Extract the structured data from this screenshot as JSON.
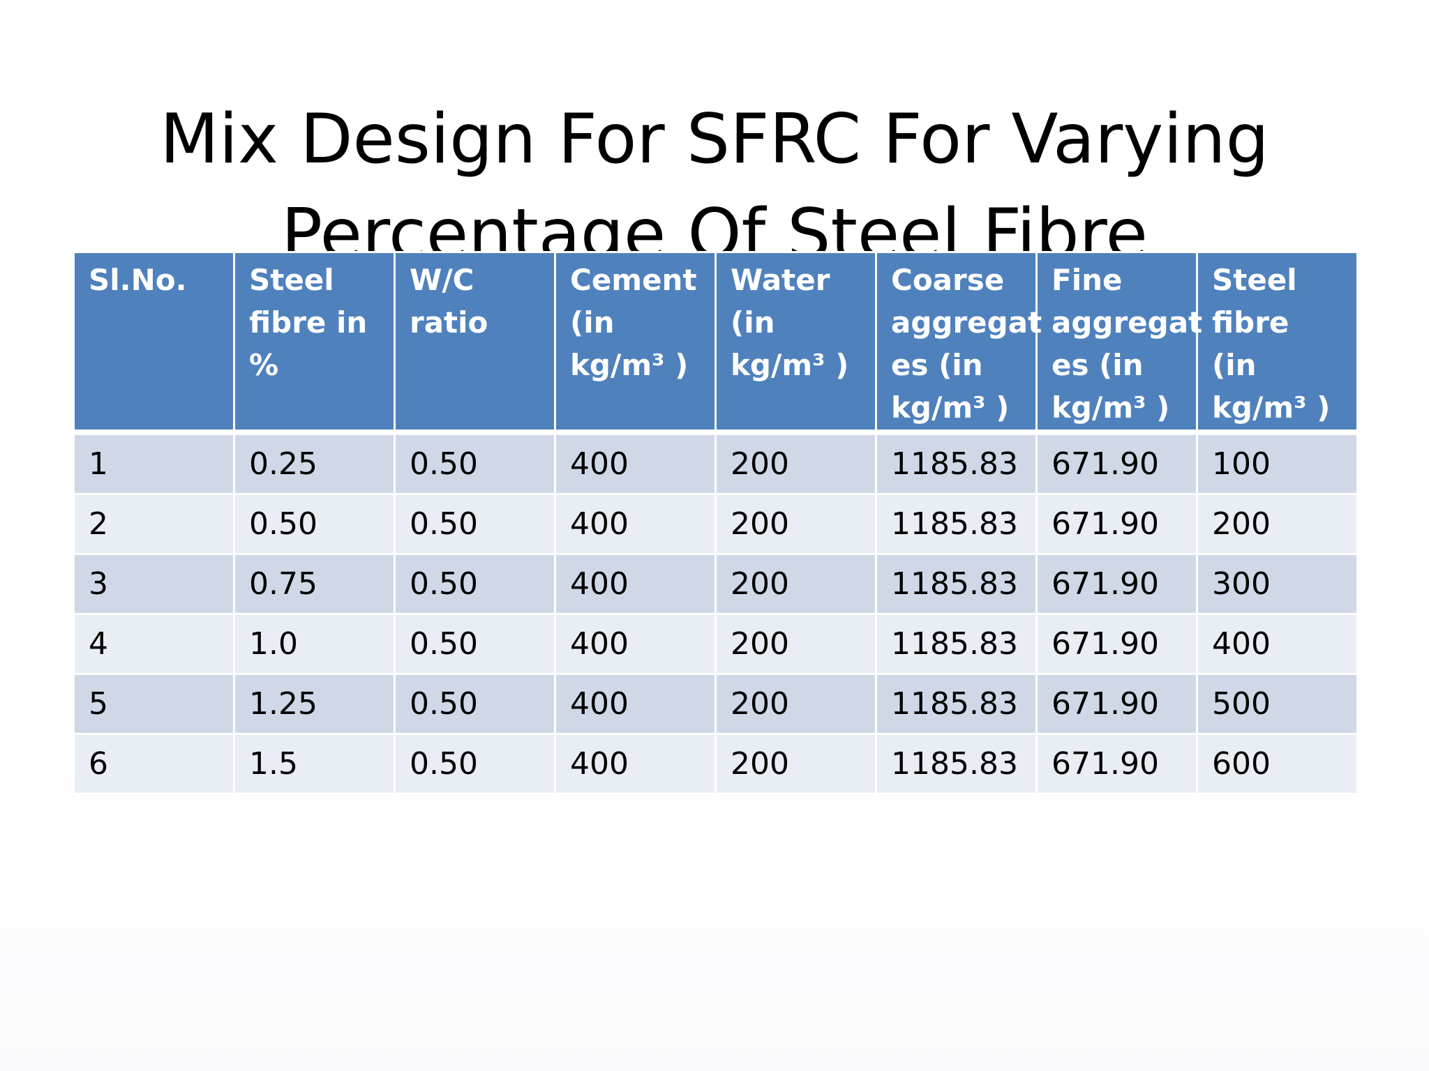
{
  "slide": {
    "title_line1": "Mix Design For SFRC For Varying",
    "title_line2": "Percentage Of Steel Fibre"
  },
  "table": {
    "headers": [
      "Sl.No.",
      "Steel fibre in %",
      "W/C ratio",
      "Cement (in kg/m³ )",
      "Water (in kg/m³ )",
      "Coarse aggregat es (in kg/m³ )",
      "Fine aggregat es (in kg/m³ )",
      "Steel fibre (in kg/m³ )"
    ],
    "rows": [
      [
        "1",
        "0.25",
        "0.50",
        "400",
        "200",
        "1185.83",
        "671.90",
        "100"
      ],
      [
        "2",
        "0.50",
        "0.50",
        "400",
        "200",
        "1185.83",
        "671.90",
        "200"
      ],
      [
        "3",
        "0.75",
        "0.50",
        "400",
        "200",
        "1185.83",
        "671.90",
        "300"
      ],
      [
        "4",
        "1.0",
        "0.50",
        "400",
        "200",
        "1185.83",
        "671.90",
        "400"
      ],
      [
        "5",
        "1.25",
        "0.50",
        "400",
        "200",
        "1185.83",
        "671.90",
        "500"
      ],
      [
        "6",
        "1.5",
        "0.50",
        "400",
        "200",
        "1185.83",
        "671.90",
        "600"
      ]
    ]
  },
  "colors": {
    "header_bg": "#4f81bd",
    "row_odd_bg": "#d0d8e8",
    "row_even_bg": "#e9edf4"
  }
}
